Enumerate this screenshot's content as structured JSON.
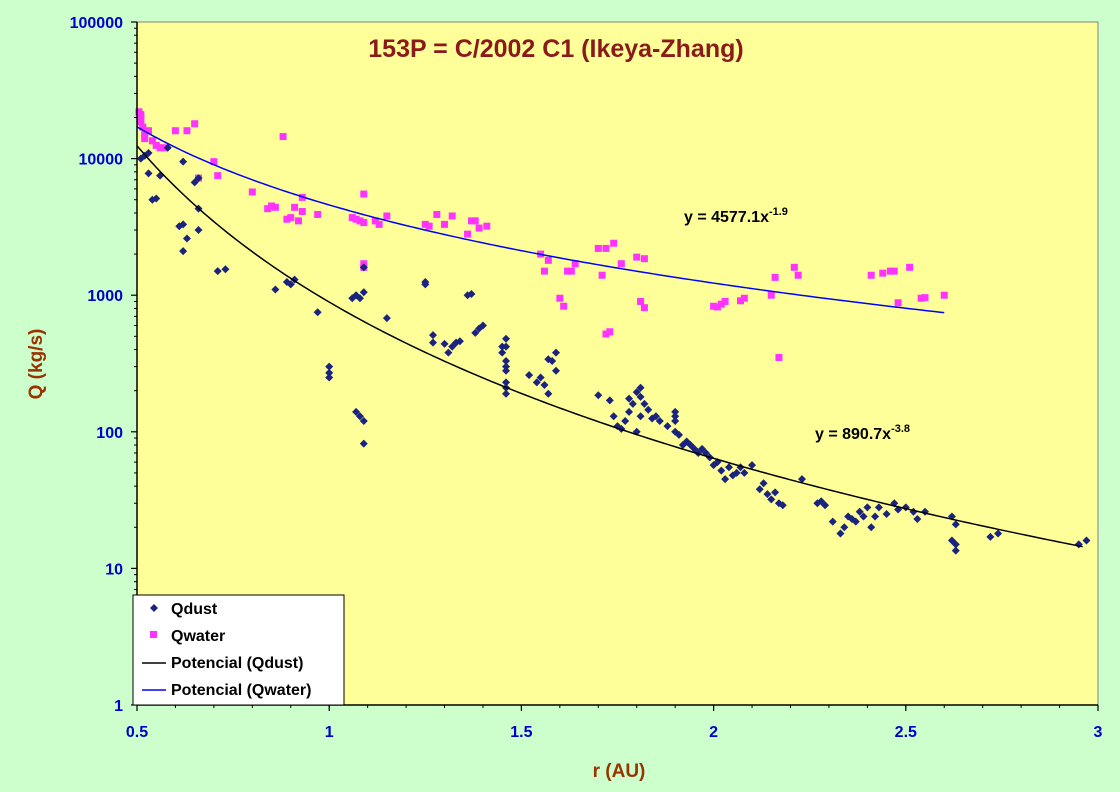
{
  "chart_data": {
    "type": "scatter",
    "title": "153P = C/2002 C1 (Ikeya-Zhang)",
    "xlabel": "r (AU)",
    "ylabel": "Q (kg/s)",
    "xlim": [
      0.5,
      3
    ],
    "ylim": [
      1,
      100000
    ],
    "yscale": "log",
    "x_ticks": [
      "0.5",
      "1",
      "1.5",
      "2",
      "2.5",
      "3"
    ],
    "y_ticks": [
      "1",
      "10",
      "100",
      "1000",
      "10000",
      "100000"
    ],
    "grid": false,
    "legend_position": "bottom-left",
    "colors": {
      "plot_background": "#ffff99",
      "outer_background": "#ccffcc",
      "qdust": "#1a237e",
      "qwater": "#ff33ff",
      "fit_dust": "#000000",
      "fit_water": "#0000ff"
    },
    "series": [
      {
        "name": "Qdust",
        "marker": "diamond",
        "points": [
          [
            0.51,
            10000
          ],
          [
            0.52,
            10500
          ],
          [
            0.53,
            11000
          ],
          [
            0.53,
            7800
          ],
          [
            0.54,
            5000
          ],
          [
            0.55,
            5100
          ],
          [
            0.56,
            7500
          ],
          [
            0.58,
            12000
          ],
          [
            0.61,
            3200
          ],
          [
            0.62,
            3300
          ],
          [
            0.62,
            9500
          ],
          [
            0.62,
            2100
          ],
          [
            0.63,
            2600
          ],
          [
            0.65,
            6700
          ],
          [
            0.66,
            7200
          ],
          [
            0.66,
            4300
          ],
          [
            0.66,
            3000
          ],
          [
            0.71,
            1500
          ],
          [
            0.73,
            1550
          ],
          [
            0.86,
            1100
          ],
          [
            0.89,
            1250
          ],
          [
            0.9,
            1200
          ],
          [
            0.91,
            1300
          ],
          [
            0.97,
            750
          ],
          [
            1.0,
            300
          ],
          [
            1.0,
            270
          ],
          [
            1.0,
            250
          ],
          [
            1.06,
            950
          ],
          [
            1.07,
            1000
          ],
          [
            1.07,
            140
          ],
          [
            1.08,
            130
          ],
          [
            1.08,
            950
          ],
          [
            1.09,
            1050
          ],
          [
            1.09,
            1600
          ],
          [
            1.09,
            120
          ],
          [
            1.09,
            82
          ],
          [
            1.15,
            680
          ],
          [
            1.25,
            1200
          ],
          [
            1.25,
            1250
          ],
          [
            1.27,
            450
          ],
          [
            1.27,
            510
          ],
          [
            1.3,
            440
          ],
          [
            1.31,
            380
          ],
          [
            1.32,
            420
          ],
          [
            1.33,
            450
          ],
          [
            1.34,
            460
          ],
          [
            1.36,
            1000
          ],
          [
            1.37,
            1020
          ],
          [
            1.38,
            530
          ],
          [
            1.39,
            570
          ],
          [
            1.4,
            600
          ],
          [
            1.45,
            420
          ],
          [
            1.45,
            380
          ],
          [
            1.46,
            480
          ],
          [
            1.46,
            420
          ],
          [
            1.46,
            330
          ],
          [
            1.46,
            300
          ],
          [
            1.46,
            280
          ],
          [
            1.46,
            230
          ],
          [
            1.46,
            210
          ],
          [
            1.46,
            190
          ],
          [
            1.52,
            260
          ],
          [
            1.54,
            230
          ],
          [
            1.55,
            250
          ],
          [
            1.56,
            220
          ],
          [
            1.57,
            190
          ],
          [
            1.57,
            340
          ],
          [
            1.58,
            330
          ],
          [
            1.59,
            380
          ],
          [
            1.59,
            280
          ],
          [
            1.7,
            185
          ],
          [
            1.73,
            170
          ],
          [
            1.74,
            130
          ],
          [
            1.75,
            110
          ],
          [
            1.76,
            105
          ],
          [
            1.77,
            120
          ],
          [
            1.78,
            140
          ],
          [
            1.78,
            175
          ],
          [
            1.79,
            160
          ],
          [
            1.8,
            195
          ],
          [
            1.8,
            100
          ],
          [
            1.81,
            210
          ],
          [
            1.81,
            180
          ],
          [
            1.81,
            130
          ],
          [
            1.82,
            160
          ],
          [
            1.83,
            145
          ],
          [
            1.84,
            125
          ],
          [
            1.85,
            130
          ],
          [
            1.86,
            120
          ],
          [
            1.88,
            110
          ],
          [
            1.9,
            130
          ],
          [
            1.9,
            140
          ],
          [
            1.9,
            120
          ],
          [
            1.9,
            100
          ],
          [
            1.91,
            95
          ],
          [
            1.92,
            80
          ],
          [
            1.93,
            85
          ],
          [
            1.94,
            80
          ],
          [
            1.95,
            75
          ],
          [
            1.96,
            70
          ],
          [
            1.97,
            75
          ],
          [
            1.98,
            70
          ],
          [
            1.99,
            65
          ],
          [
            2.0,
            57
          ],
          [
            2.01,
            60
          ],
          [
            2.02,
            52
          ],
          [
            2.03,
            45
          ],
          [
            2.04,
            55
          ],
          [
            2.05,
            48
          ],
          [
            2.06,
            50
          ],
          [
            2.07,
            55
          ],
          [
            2.08,
            50
          ],
          [
            2.1,
            57
          ],
          [
            2.12,
            38
          ],
          [
            2.13,
            42
          ],
          [
            2.14,
            35
          ],
          [
            2.15,
            32
          ],
          [
            2.16,
            36
          ],
          [
            2.17,
            30
          ],
          [
            2.18,
            29
          ],
          [
            2.23,
            45
          ],
          [
            2.27,
            30
          ],
          [
            2.28,
            31
          ],
          [
            2.29,
            29
          ],
          [
            2.31,
            22
          ],
          [
            2.33,
            18
          ],
          [
            2.34,
            20
          ],
          [
            2.35,
            24
          ],
          [
            2.36,
            23
          ],
          [
            2.37,
            22
          ],
          [
            2.38,
            26
          ],
          [
            2.39,
            24
          ],
          [
            2.4,
            28
          ],
          [
            2.41,
            20
          ],
          [
            2.42,
            24
          ],
          [
            2.43,
            28
          ],
          [
            2.45,
            25
          ],
          [
            2.47,
            30
          ],
          [
            2.48,
            27
          ],
          [
            2.5,
            28
          ],
          [
            2.52,
            26
          ],
          [
            2.53,
            23
          ],
          [
            2.55,
            26
          ],
          [
            2.62,
            24
          ],
          [
            2.62,
            16
          ],
          [
            2.63,
            15
          ],
          [
            2.63,
            21
          ],
          [
            2.63,
            13.5
          ],
          [
            2.72,
            17
          ],
          [
            2.74,
            18
          ],
          [
            2.95,
            15
          ],
          [
            2.97,
            16
          ]
        ]
      },
      {
        "name": "Qwater",
        "marker": "square",
        "points": [
          [
            0.505,
            22000
          ],
          [
            0.51,
            21000
          ],
          [
            0.51,
            20000
          ],
          [
            0.51,
            18500
          ],
          [
            0.515,
            17000
          ],
          [
            0.52,
            15000
          ],
          [
            0.52,
            14000
          ],
          [
            0.53,
            16000
          ],
          [
            0.54,
            13500
          ],
          [
            0.55,
            12500
          ],
          [
            0.56,
            12000
          ],
          [
            0.57,
            12000
          ],
          [
            0.6,
            16000
          ],
          [
            0.63,
            16000
          ],
          [
            0.65,
            18000
          ],
          [
            0.66,
            7200
          ],
          [
            0.7,
            9500
          ],
          [
            0.71,
            7500
          ],
          [
            0.8,
            5700
          ],
          [
            0.84,
            4300
          ],
          [
            0.85,
            4500
          ],
          [
            0.86,
            4400
          ],
          [
            0.88,
            14500
          ],
          [
            0.89,
            3600
          ],
          [
            0.9,
            3700
          ],
          [
            0.91,
            4400
          ],
          [
            0.92,
            3500
          ],
          [
            0.93,
            5200
          ],
          [
            0.93,
            4100
          ],
          [
            0.97,
            3900
          ],
          [
            1.06,
            3700
          ],
          [
            1.07,
            3600
          ],
          [
            1.08,
            3500
          ],
          [
            1.09,
            5500
          ],
          [
            1.09,
            3400
          ],
          [
            1.09,
            1700
          ],
          [
            1.09,
            1600
          ],
          [
            1.12,
            3500
          ],
          [
            1.13,
            3300
          ],
          [
            1.15,
            3800
          ],
          [
            1.25,
            3300
          ],
          [
            1.26,
            3200
          ],
          [
            1.28,
            3900
          ],
          [
            1.3,
            3300
          ],
          [
            1.32,
            3800
          ],
          [
            1.36,
            2800
          ],
          [
            1.37,
            3500
          ],
          [
            1.38,
            3500
          ],
          [
            1.39,
            3100
          ],
          [
            1.41,
            3200
          ],
          [
            1.55,
            2000
          ],
          [
            1.56,
            1500
          ],
          [
            1.57,
            1800
          ],
          [
            1.6,
            950
          ],
          [
            1.61,
            830
          ],
          [
            1.62,
            1500
          ],
          [
            1.63,
            1500
          ],
          [
            1.64,
            1700
          ],
          [
            1.7,
            2200
          ],
          [
            1.71,
            1400
          ],
          [
            1.72,
            2200
          ],
          [
            1.72,
            520
          ],
          [
            1.73,
            540
          ],
          [
            1.74,
            2400
          ],
          [
            1.76,
            1700
          ],
          [
            1.8,
            1900
          ],
          [
            1.81,
            900
          ],
          [
            1.82,
            1850
          ],
          [
            1.82,
            810
          ],
          [
            2.0,
            830
          ],
          [
            2.01,
            820
          ],
          [
            2.02,
            860
          ],
          [
            2.03,
            900
          ],
          [
            2.07,
            910
          ],
          [
            2.08,
            950
          ],
          [
            2.15,
            1000
          ],
          [
            2.16,
            1350
          ],
          [
            2.17,
            350
          ],
          [
            2.21,
            1600
          ],
          [
            2.22,
            1400
          ],
          [
            2.41,
            1400
          ],
          [
            2.44,
            1450
          ],
          [
            2.46,
            1500
          ],
          [
            2.47,
            1500
          ],
          [
            2.48,
            880
          ],
          [
            2.51,
            1600
          ],
          [
            2.54,
            950
          ],
          [
            2.55,
            960
          ],
          [
            2.6,
            1000
          ]
        ]
      },
      {
        "name": "Potencial (Qdust)",
        "type": "line",
        "fit": "power",
        "a": 890.7,
        "b": -3.8,
        "x_range": [
          0.5,
          2.96
        ]
      },
      {
        "name": "Potencial (Qwater)",
        "type": "line",
        "fit": "power",
        "a": 4577.1,
        "b": -1.9,
        "x_range": [
          0.5,
          2.6
        ]
      }
    ],
    "annotations": [
      {
        "text_base": "y = 4577.1x",
        "text_sup": "-1.9",
        "near_x": 0.96,
        "near_y": 4700
      },
      {
        "text_base": "y = 890.7x",
        "text_sup": "-3.8",
        "near_x": 2.26,
        "near_y": 108
      }
    ]
  }
}
